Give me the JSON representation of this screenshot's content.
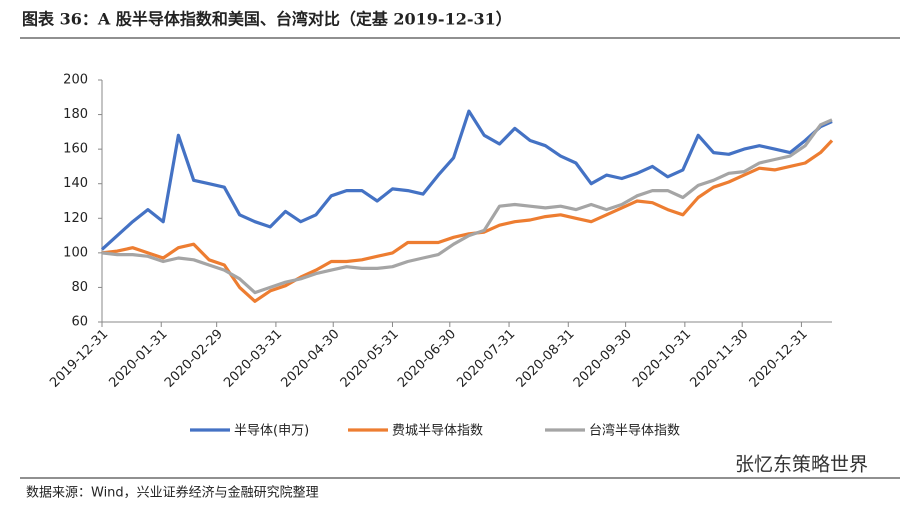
{
  "chart_data": {
    "type": "line",
    "title": "图表 36：A 股半导体指数和美国、台湾对比（定基 2019-12-31）",
    "x": [
      "2019-12-31",
      "2020-01-08",
      "2020-01-16",
      "2020-01-24",
      "2020-02-01",
      "2020-02-09",
      "2020-02-17",
      "2020-02-25",
      "2020-03-04",
      "2020-03-12",
      "2020-03-20",
      "2020-03-28",
      "2020-04-05",
      "2020-04-13",
      "2020-04-21",
      "2020-04-29",
      "2020-05-07",
      "2020-05-15",
      "2020-05-23",
      "2020-05-31",
      "2020-06-08",
      "2020-06-16",
      "2020-06-24",
      "2020-07-02",
      "2020-07-10",
      "2020-07-18",
      "2020-07-26",
      "2020-08-03",
      "2020-08-11",
      "2020-08-19",
      "2020-08-27",
      "2020-09-04",
      "2020-09-12",
      "2020-09-20",
      "2020-09-28",
      "2020-10-06",
      "2020-10-14",
      "2020-10-22",
      "2020-10-30",
      "2020-11-07",
      "2020-11-15",
      "2020-11-23",
      "2020-12-01",
      "2020-12-09",
      "2020-12-17",
      "2020-12-25",
      "2021-01-02",
      "2021-01-10",
      "2021-01-16"
    ],
    "series": [
      {
        "name": "半导体(申万)",
        "color": "#4472c4",
        "values": [
          102,
          110,
          118,
          125,
          118,
          168,
          142,
          140,
          138,
          122,
          118,
          115,
          124,
          118,
          122,
          133,
          136,
          136,
          130,
          137,
          136,
          134,
          145,
          155,
          182,
          168,
          163,
          172,
          165,
          162,
          156,
          152,
          140,
          145,
          143,
          146,
          150,
          144,
          148,
          168,
          158,
          157,
          160,
          162,
          160,
          158,
          165,
          173,
          176
        ]
      },
      {
        "name": "费城半导体指数",
        "color": "#ed7d31",
        "values": [
          100,
          101,
          103,
          100,
          97,
          103,
          105,
          96,
          93,
          80,
          72,
          78,
          81,
          86,
          90,
          95,
          95,
          96,
          98,
          100,
          106,
          106,
          106,
          109,
          111,
          112,
          116,
          118,
          119,
          121,
          122,
          120,
          118,
          122,
          126,
          130,
          129,
          125,
          122,
          132,
          138,
          141,
          145,
          149,
          148,
          150,
          152,
          158,
          165
        ]
      },
      {
        "name": "台湾半导体指数",
        "color": "#a5a5a5",
        "values": [
          100,
          99,
          99,
          98,
          95,
          97,
          96,
          93,
          90,
          85,
          77,
          80,
          83,
          85,
          88,
          90,
          92,
          91,
          91,
          92,
          95,
          97,
          99,
          105,
          110,
          113,
          127,
          128,
          127,
          126,
          127,
          125,
          128,
          125,
          128,
          133,
          136,
          136,
          132,
          139,
          142,
          146,
          147,
          152,
          154,
          156,
          162,
          174,
          177
        ]
      }
    ],
    "xlim": [
      "2019-12-31",
      "2021-01-16"
    ],
    "xticks": [
      "2019-12-31",
      "2020-01-31",
      "2020-02-29",
      "2020-03-31",
      "2020-04-30",
      "2020-05-31",
      "2020-06-30",
      "2020-07-31",
      "2020-08-31",
      "2020-09-30",
      "2020-10-31",
      "2020-11-30",
      "2020-12-31"
    ],
    "ylim": [
      60,
      200
    ],
    "yticks": [
      60,
      80,
      100,
      120,
      140,
      160,
      180,
      200
    ],
    "grid": false,
    "legend": "bottom"
  },
  "source": "数据来源：Wind，兴业证券经济与金融研究院整理",
  "watermark": "张忆东策略世界"
}
